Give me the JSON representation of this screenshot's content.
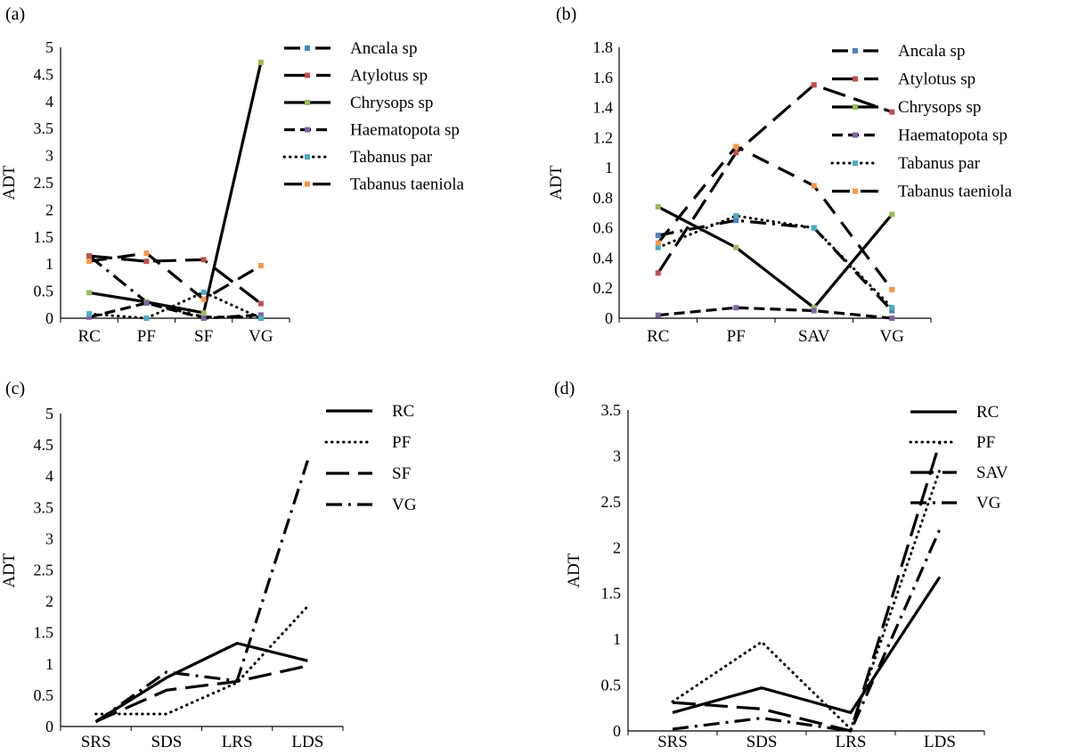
{
  "chart_data": [
    {
      "id": "a",
      "panel_label": "(a)",
      "type": "line",
      "ylabel": "ADT",
      "xlabel": "",
      "categories": [
        "RC",
        "PF",
        "SF",
        "VG"
      ],
      "ylim": [
        0,
        5
      ],
      "yticks": [
        "0",
        "0.5",
        "1",
        "1.5",
        "2",
        "2.5",
        "3",
        "3.5",
        "4",
        "4.5",
        "5"
      ],
      "legend_position": "top-right",
      "series": [
        {
          "name": "Ancala sp",
          "style": "dashdot",
          "marker_color": "#4F81BD",
          "values": [
            1.15,
            0.3,
            0.02,
            0.02
          ]
        },
        {
          "name": "Atylotus sp",
          "style": "longdash",
          "marker_color": "#C0504D",
          "values": [
            1.15,
            1.05,
            1.08,
            0.27
          ]
        },
        {
          "name": "Chrysops sp",
          "style": "solid",
          "marker_color": "#9BBB59",
          "values": [
            0.47,
            0.3,
            0.1,
            4.72
          ]
        },
        {
          "name": "Haematopota sp",
          "style": "dash",
          "marker_color": "#8064A2",
          "values": [
            0.02,
            0.28,
            0.0,
            0.06
          ]
        },
        {
          "name": "Tabanus par",
          "style": "dot",
          "marker_color": "#4BACC6",
          "values": [
            0.08,
            0.0,
            0.48,
            0.0
          ]
        },
        {
          "name": "Tabanus taeniola",
          "style": "longdash2",
          "marker_color": "#F79646",
          "values": [
            1.05,
            1.2,
            0.35,
            0.97
          ]
        }
      ]
    },
    {
      "id": "b",
      "panel_label": "(b)",
      "type": "line",
      "ylabel": "ADT",
      "xlabel": "",
      "categories": [
        "RC",
        "PF",
        "SAV",
        "VG"
      ],
      "ylim": [
        0,
        1.8
      ],
      "yticks": [
        "0",
        "0.2",
        "0.4",
        "0.6",
        "0.8",
        "1",
        "1.2",
        "1.4",
        "1.6",
        "1.8"
      ],
      "legend_position": "top-right",
      "series": [
        {
          "name": "Ancala sp",
          "style": "dashdot",
          "marker_color": "#4F81BD",
          "values": [
            0.55,
            0.65,
            0.6,
            0.05
          ]
        },
        {
          "name": "Atylotus sp",
          "style": "longdash",
          "marker_color": "#C0504D",
          "values": [
            0.3,
            1.1,
            1.55,
            1.37
          ]
        },
        {
          "name": "Chrysops sp",
          "style": "solid",
          "marker_color": "#9BBB59",
          "values": [
            0.74,
            0.47,
            0.07,
            0.69
          ]
        },
        {
          "name": "Haematopota sp",
          "style": "dash",
          "marker_color": "#8064A2",
          "values": [
            0.02,
            0.07,
            0.05,
            0.0
          ]
        },
        {
          "name": "Tabanus par",
          "style": "dot",
          "marker_color": "#4BACC6",
          "values": [
            0.47,
            0.68,
            0.6,
            0.07
          ]
        },
        {
          "name": "Tabanus taeniola",
          "style": "longdash2",
          "marker_color": "#F79646",
          "values": [
            0.5,
            1.14,
            0.88,
            0.19
          ]
        }
      ]
    },
    {
      "id": "c",
      "panel_label": "(c)",
      "type": "line",
      "ylabel": "ADT",
      "xlabel": "",
      "categories": [
        "SRS",
        "SDS",
        "LRS",
        "LDS"
      ],
      "ylim": [
        0,
        5
      ],
      "yticks": [
        "0",
        "0.5",
        "1",
        "1.5",
        "2",
        "2.5",
        "3",
        "3.5",
        "4",
        "4.5",
        "5"
      ],
      "legend_position": "top-right",
      "series": [
        {
          "name": "RC",
          "style": "solid",
          "values": [
            0.08,
            0.78,
            1.33,
            1.05
          ]
        },
        {
          "name": "PF",
          "style": "dot",
          "values": [
            0.2,
            0.2,
            0.7,
            1.92
          ]
        },
        {
          "name": "SF",
          "style": "longdash",
          "values": [
            0.08,
            0.58,
            0.72,
            0.97
          ]
        },
        {
          "name": "VG",
          "style": "dashdot",
          "values": [
            0.07,
            0.87,
            0.73,
            4.25
          ]
        }
      ]
    },
    {
      "id": "d",
      "panel_label": "(d)",
      "type": "line",
      "ylabel": "ADT",
      "xlabel": "",
      "categories": [
        "SRS",
        "SDS",
        "LRS",
        "LDS"
      ],
      "ylim": [
        0,
        3.5
      ],
      "yticks": [
        "0",
        "0.5",
        "1",
        "1.5",
        "2",
        "2.5",
        "3",
        "3.5"
      ],
      "legend_position": "top-right",
      "series": [
        {
          "name": "RC",
          "style": "solid",
          "values": [
            0.2,
            0.47,
            0.2,
            1.68
          ]
        },
        {
          "name": "PF",
          "style": "dot",
          "values": [
            0.32,
            0.97,
            0.02,
            2.85
          ]
        },
        {
          "name": "SAV",
          "style": "longdash",
          "values": [
            0.31,
            0.24,
            0.0,
            3.15
          ]
        },
        {
          "name": "VG",
          "style": "dashdot",
          "values": [
            0.02,
            0.14,
            0.0,
            2.2
          ]
        }
      ]
    }
  ]
}
